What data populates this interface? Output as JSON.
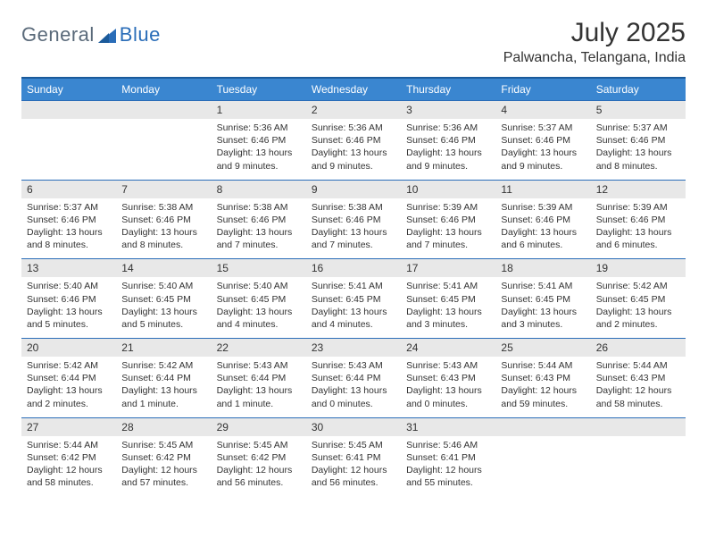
{
  "brand": {
    "general": "General",
    "blue": "Blue"
  },
  "title": "July 2025",
  "location": "Palwancha, Telangana, India",
  "colors": {
    "header_bg": "#3a86d0",
    "header_border": "#1a5a9a",
    "row_border": "#2a6db8",
    "daynum_bg": "#e8e8e8",
    "text": "#333333",
    "logo_gray": "#5a6a7a",
    "logo_blue": "#2a6db8"
  },
  "day_headers": [
    "Sunday",
    "Monday",
    "Tuesday",
    "Wednesday",
    "Thursday",
    "Friday",
    "Saturday"
  ],
  "weeks": [
    [
      null,
      null,
      {
        "n": "1",
        "sr": "5:36 AM",
        "ss": "6:46 PM",
        "dl": "13 hours and 9 minutes."
      },
      {
        "n": "2",
        "sr": "5:36 AM",
        "ss": "6:46 PM",
        "dl": "13 hours and 9 minutes."
      },
      {
        "n": "3",
        "sr": "5:36 AM",
        "ss": "6:46 PM",
        "dl": "13 hours and 9 minutes."
      },
      {
        "n": "4",
        "sr": "5:37 AM",
        "ss": "6:46 PM",
        "dl": "13 hours and 9 minutes."
      },
      {
        "n": "5",
        "sr": "5:37 AM",
        "ss": "6:46 PM",
        "dl": "13 hours and 8 minutes."
      }
    ],
    [
      {
        "n": "6",
        "sr": "5:37 AM",
        "ss": "6:46 PM",
        "dl": "13 hours and 8 minutes."
      },
      {
        "n": "7",
        "sr": "5:38 AM",
        "ss": "6:46 PM",
        "dl": "13 hours and 8 minutes."
      },
      {
        "n": "8",
        "sr": "5:38 AM",
        "ss": "6:46 PM",
        "dl": "13 hours and 7 minutes."
      },
      {
        "n": "9",
        "sr": "5:38 AM",
        "ss": "6:46 PM",
        "dl": "13 hours and 7 minutes."
      },
      {
        "n": "10",
        "sr": "5:39 AM",
        "ss": "6:46 PM",
        "dl": "13 hours and 7 minutes."
      },
      {
        "n": "11",
        "sr": "5:39 AM",
        "ss": "6:46 PM",
        "dl": "13 hours and 6 minutes."
      },
      {
        "n": "12",
        "sr": "5:39 AM",
        "ss": "6:46 PM",
        "dl": "13 hours and 6 minutes."
      }
    ],
    [
      {
        "n": "13",
        "sr": "5:40 AM",
        "ss": "6:46 PM",
        "dl": "13 hours and 5 minutes."
      },
      {
        "n": "14",
        "sr": "5:40 AM",
        "ss": "6:45 PM",
        "dl": "13 hours and 5 minutes."
      },
      {
        "n": "15",
        "sr": "5:40 AM",
        "ss": "6:45 PM",
        "dl": "13 hours and 4 minutes."
      },
      {
        "n": "16",
        "sr": "5:41 AM",
        "ss": "6:45 PM",
        "dl": "13 hours and 4 minutes."
      },
      {
        "n": "17",
        "sr": "5:41 AM",
        "ss": "6:45 PM",
        "dl": "13 hours and 3 minutes."
      },
      {
        "n": "18",
        "sr": "5:41 AM",
        "ss": "6:45 PM",
        "dl": "13 hours and 3 minutes."
      },
      {
        "n": "19",
        "sr": "5:42 AM",
        "ss": "6:45 PM",
        "dl": "13 hours and 2 minutes."
      }
    ],
    [
      {
        "n": "20",
        "sr": "5:42 AM",
        "ss": "6:44 PM",
        "dl": "13 hours and 2 minutes."
      },
      {
        "n": "21",
        "sr": "5:42 AM",
        "ss": "6:44 PM",
        "dl": "13 hours and 1 minute."
      },
      {
        "n": "22",
        "sr": "5:43 AM",
        "ss": "6:44 PM",
        "dl": "13 hours and 1 minute."
      },
      {
        "n": "23",
        "sr": "5:43 AM",
        "ss": "6:44 PM",
        "dl": "13 hours and 0 minutes."
      },
      {
        "n": "24",
        "sr": "5:43 AM",
        "ss": "6:43 PM",
        "dl": "13 hours and 0 minutes."
      },
      {
        "n": "25",
        "sr": "5:44 AM",
        "ss": "6:43 PM",
        "dl": "12 hours and 59 minutes."
      },
      {
        "n": "26",
        "sr": "5:44 AM",
        "ss": "6:43 PM",
        "dl": "12 hours and 58 minutes."
      }
    ],
    [
      {
        "n": "27",
        "sr": "5:44 AM",
        "ss": "6:42 PM",
        "dl": "12 hours and 58 minutes."
      },
      {
        "n": "28",
        "sr": "5:45 AM",
        "ss": "6:42 PM",
        "dl": "12 hours and 57 minutes."
      },
      {
        "n": "29",
        "sr": "5:45 AM",
        "ss": "6:42 PM",
        "dl": "12 hours and 56 minutes."
      },
      {
        "n": "30",
        "sr": "5:45 AM",
        "ss": "6:41 PM",
        "dl": "12 hours and 56 minutes."
      },
      {
        "n": "31",
        "sr": "5:46 AM",
        "ss": "6:41 PM",
        "dl": "12 hours and 55 minutes."
      },
      null,
      null
    ]
  ],
  "labels": {
    "sunrise": "Sunrise:",
    "sunset": "Sunset:",
    "daylight": "Daylight:"
  }
}
